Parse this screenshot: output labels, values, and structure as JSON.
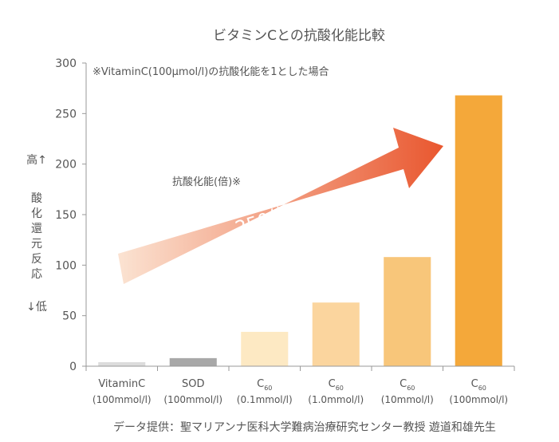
{
  "chart_data": {
    "type": "bar",
    "title": "ビタミンCとの抗酸化能比較",
    "note": "※VitaminC(100μmol/l)の抗酸化能を1とした場合",
    "series_label": "抗酸化能(倍)※",
    "ylabel": {
      "high": "高↑",
      "middle": [
        "酸",
        "化",
        "還",
        "元",
        "反",
        "応"
      ],
      "low": "↓低"
    },
    "ylim": [
      0,
      300
    ],
    "yticks": [
      0,
      50,
      100,
      150,
      200,
      250,
      300
    ],
    "grid": false,
    "categories": [
      {
        "name": "VitaminC",
        "sub": "",
        "conc": "(100mmol/l)"
      },
      {
        "name": "SOD",
        "sub": "",
        "conc": "(100mmol/l)"
      },
      {
        "name": "C",
        "sub": "60",
        "conc": "(0.1mmol/l)"
      },
      {
        "name": "C",
        "sub": "60",
        "conc": "(1.0mmol/l)"
      },
      {
        "name": "C",
        "sub": "60",
        "conc": "(10mmol/l)"
      },
      {
        "name": "C",
        "sub": "60",
        "conc": "(100mmol/l)"
      }
    ],
    "values": [
      4,
      8,
      34,
      63,
      108,
      268
    ],
    "bar_colors": [
      "#dcdcdc",
      "#a8a8a8",
      "#fde9c3",
      "#fbd59e",
      "#f8c67a",
      "#f4a83a"
    ],
    "arrow_label": "250倍以上",
    "arrow_colors": [
      "#fbe3d2",
      "#e9572f"
    ]
  },
  "source": "データ提供：聖マリアンナ医科大学難病治療研究センター教授 遊道和雄先生"
}
